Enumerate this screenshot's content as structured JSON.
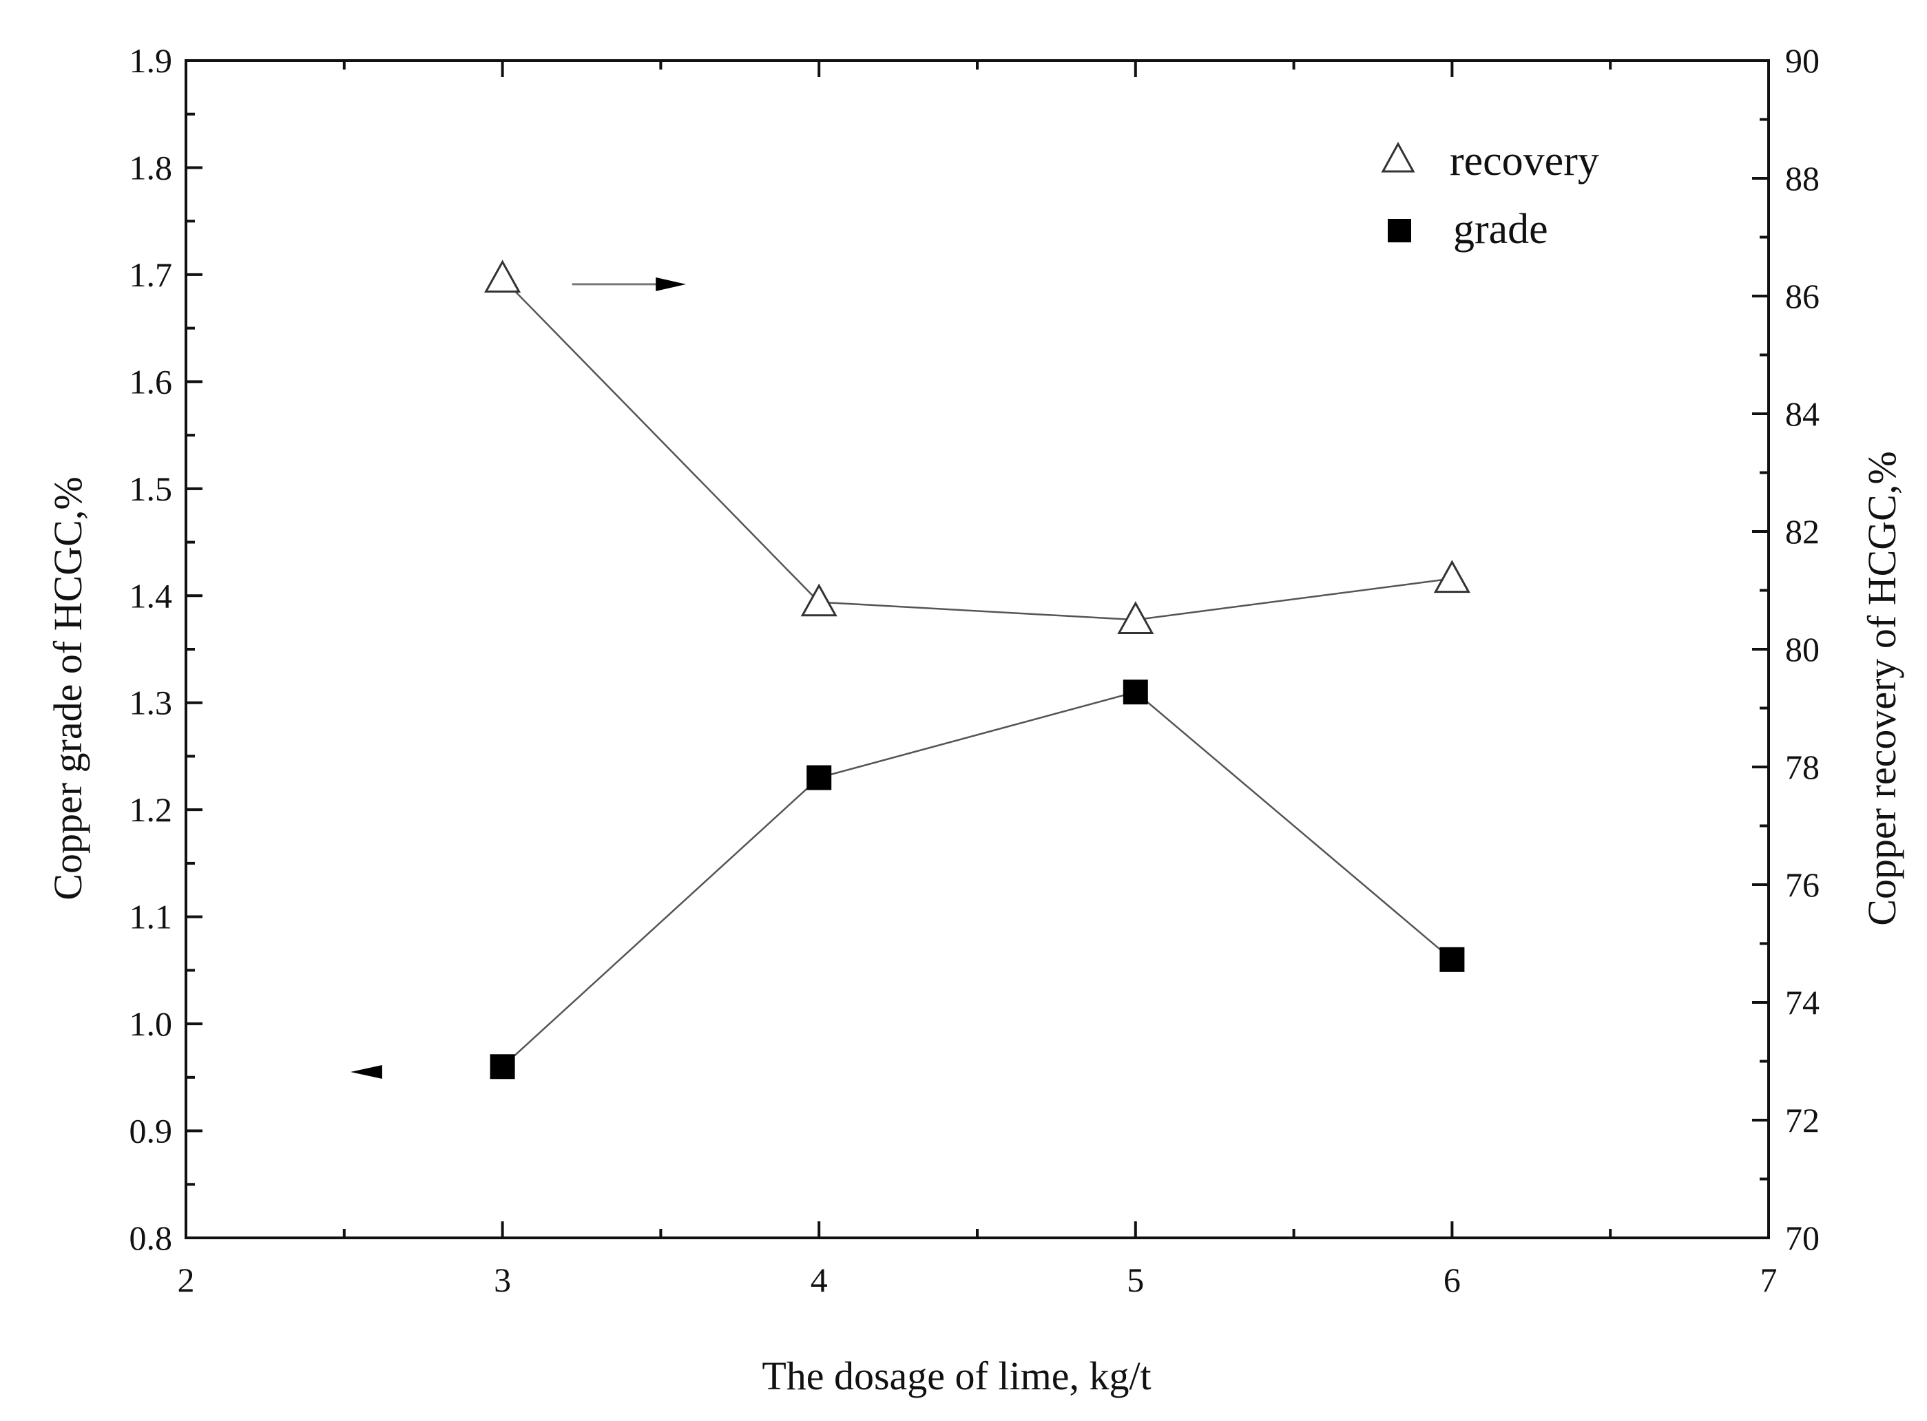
{
  "chart_data": {
    "type": "line",
    "xlabel": "The dosage of lime,  kg/t",
    "ylabel_left": "Copper grade of HCGC,%",
    "ylabel_right": "Copper recovery of HCGC,%",
    "xlim": [
      2,
      7
    ],
    "ylim_left": [
      0.8,
      1.9
    ],
    "ylim_right": [
      70,
      90
    ],
    "x_ticks": [
      2,
      3,
      4,
      5,
      6,
      7
    ],
    "y_left_ticks": [
      0.8,
      0.9,
      1.0,
      1.1,
      1.2,
      1.3,
      1.4,
      1.5,
      1.6,
      1.7,
      1.8,
      1.9
    ],
    "y_right_ticks": [
      70,
      72,
      74,
      76,
      78,
      80,
      82,
      84,
      86,
      88,
      90
    ],
    "x_tick_labels": [
      "2",
      "3",
      "4",
      "5",
      "6",
      "7"
    ],
    "y_left_tick_labels": [
      "0.8",
      "0.9",
      "1.0",
      "1.1",
      "1.2",
      "1.3",
      "1.4",
      "1.5",
      "1.6",
      "1.7",
      "1.8",
      "1.9"
    ],
    "y_right_tick_labels": [
      "70",
      "72",
      "74",
      "76",
      "78",
      "80",
      "82",
      "84",
      "86",
      "88",
      "90"
    ],
    "grid": false,
    "legend_position": "top-right",
    "series": [
      {
        "name": "recovery",
        "axis": "right",
        "marker": "open-triangle",
        "x": [
          3,
          4,
          5,
          6
        ],
        "y": [
          86.3,
          80.8,
          80.5,
          81.2
        ]
      },
      {
        "name": "grade",
        "axis": "left",
        "marker": "filled-square",
        "x": [
          3,
          4,
          5,
          6
        ],
        "y": [
          0.96,
          1.23,
          1.31,
          1.06
        ]
      }
    ],
    "axis_indicators": [
      {
        "series": "recovery",
        "points_to": "right",
        "x_range": [
          3.22,
          3.58
        ],
        "y": 86.2
      },
      {
        "series": "grade",
        "points_to": "left",
        "x_range": [
          2.52,
          2.62
        ],
        "y": 0.955
      }
    ]
  },
  "colors": {
    "axis": "#111111",
    "line": "#555555",
    "marker_fill": "#000000"
  }
}
